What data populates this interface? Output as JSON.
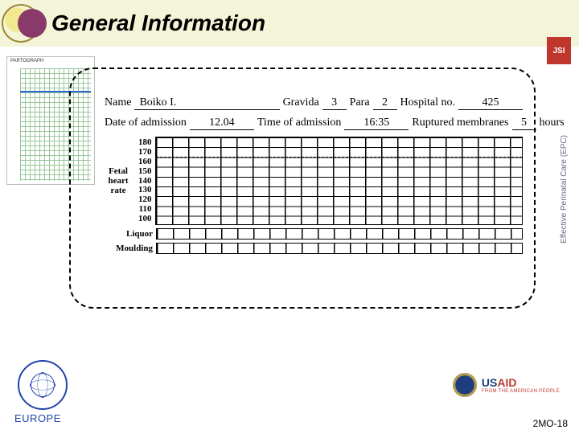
{
  "header": {
    "title": "General Information",
    "jsi": "JSI"
  },
  "sidebar_label": "Effective Perinatal Care (EPC)",
  "thumb_caption": "PARTOGRAPH",
  "form": {
    "labels": {
      "name": "Name",
      "gravida": "Gravida",
      "para": "Para",
      "hospital_no": "Hospital no.",
      "date_of_admission": "Date of admission",
      "time_of_admission": "Time of admission",
      "ruptured_membranes": "Ruptured membranes",
      "hours": "hours"
    },
    "values": {
      "name": "Boiko I.",
      "gravida": "3",
      "para": "2",
      "hospital_no": "425",
      "date_of_admission": "12.04",
      "time_of_admission": "16:35",
      "ruptured_membranes": "5"
    }
  },
  "fhr": {
    "title": "Fetal\nheart\nrate",
    "ticks": [
      "180",
      "170",
      "160",
      "150",
      "140",
      "130",
      "120",
      "110",
      "100"
    ],
    "ymax": 180,
    "ymin": 100,
    "columns": 24,
    "grid_color": "#000000",
    "dotted_rows": [
      2,
      6
    ]
  },
  "strips": {
    "liquor": "Liquor",
    "moulding": "Moulding"
  },
  "footer": {
    "who_region": "EUROPE",
    "agency": "USAID",
    "agency_tag": "FROM THE AMERICAN PEOPLE",
    "slide_no": "2MO-18"
  },
  "styling": {
    "header_bg": "#f4f4d8",
    "jsi_bg": "#c0372d",
    "dash_border": "#000000",
    "title_fontsize": 28,
    "form_fontsize": 14,
    "handwriting_font": "Comic Sans MS"
  }
}
